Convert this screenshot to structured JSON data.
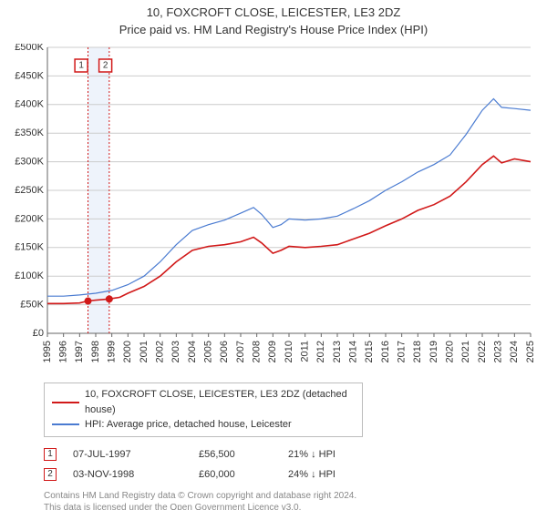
{
  "title_line1": "10, FOXCROFT CLOSE, LEICESTER, LE3 2DZ",
  "title_line2": "Price paid vs. HM Land Registry's House Price Index (HPI)",
  "chart": {
    "type": "line",
    "background_color": "#ffffff",
    "grid_color": "#cccccc",
    "axis_color": "#666666",
    "band_color": "#eef3fb",
    "x_start": 1995,
    "x_end": 2025,
    "xticks": [
      1995,
      1996,
      1997,
      1998,
      1999,
      2000,
      2001,
      2002,
      2003,
      2004,
      2005,
      2006,
      2007,
      2008,
      2009,
      2010,
      2011,
      2012,
      2013,
      2014,
      2015,
      2016,
      2017,
      2018,
      2019,
      2020,
      2021,
      2022,
      2023,
      2024,
      2025
    ],
    "y_start": 0,
    "y_end": 500000,
    "yticks": [
      0,
      50000,
      100000,
      150000,
      200000,
      250000,
      300000,
      350000,
      400000,
      450000,
      500000
    ],
    "ytick_labels": [
      "£0",
      "£50K",
      "£100K",
      "£150K",
      "£200K",
      "£250K",
      "£300K",
      "£350K",
      "£400K",
      "£450K",
      "£500K"
    ],
    "series_price": {
      "label": "10, FOXCROFT CLOSE, LEICESTER, LE3 2DZ (detached house)",
      "color": "#d11919",
      "width": 1.6,
      "points": [
        [
          1995.0,
          52000
        ],
        [
          1996.0,
          52000
        ],
        [
          1997.0,
          53000
        ],
        [
          1997.5,
          56500
        ],
        [
          1998.0,
          58000
        ],
        [
          1998.84,
          60000
        ],
        [
          1999.5,
          63000
        ],
        [
          2000.0,
          70000
        ],
        [
          2001.0,
          82000
        ],
        [
          2002.0,
          100000
        ],
        [
          2003.0,
          125000
        ],
        [
          2004.0,
          145000
        ],
        [
          2005.0,
          152000
        ],
        [
          2006.0,
          155000
        ],
        [
          2007.0,
          160000
        ],
        [
          2007.8,
          168000
        ],
        [
          2008.3,
          158000
        ],
        [
          2009.0,
          140000
        ],
        [
          2009.5,
          145000
        ],
        [
          2010.0,
          152000
        ],
        [
          2011.0,
          150000
        ],
        [
          2012.0,
          152000
        ],
        [
          2013.0,
          155000
        ],
        [
          2014.0,
          165000
        ],
        [
          2015.0,
          175000
        ],
        [
          2016.0,
          188000
        ],
        [
          2017.0,
          200000
        ],
        [
          2018.0,
          215000
        ],
        [
          2019.0,
          225000
        ],
        [
          2020.0,
          240000
        ],
        [
          2021.0,
          265000
        ],
        [
          2022.0,
          295000
        ],
        [
          2022.7,
          310000
        ],
        [
          2023.2,
          298000
        ],
        [
          2024.0,
          305000
        ],
        [
          2025.0,
          300000
        ]
      ]
    },
    "series_hpi": {
      "label": "HPI: Average price, detached house, Leicester",
      "color": "#4a7bd1",
      "width": 1.2,
      "points": [
        [
          1995.0,
          65000
        ],
        [
          1996.0,
          65000
        ],
        [
          1997.0,
          67000
        ],
        [
          1998.0,
          70000
        ],
        [
          1999.0,
          75000
        ],
        [
          2000.0,
          85000
        ],
        [
          2001.0,
          100000
        ],
        [
          2002.0,
          125000
        ],
        [
          2003.0,
          155000
        ],
        [
          2004.0,
          180000
        ],
        [
          2005.0,
          190000
        ],
        [
          2006.0,
          198000
        ],
        [
          2007.0,
          210000
        ],
        [
          2007.8,
          220000
        ],
        [
          2008.3,
          208000
        ],
        [
          2009.0,
          185000
        ],
        [
          2009.5,
          190000
        ],
        [
          2010.0,
          200000
        ],
        [
          2011.0,
          198000
        ],
        [
          2012.0,
          200000
        ],
        [
          2013.0,
          205000
        ],
        [
          2014.0,
          218000
        ],
        [
          2015.0,
          232000
        ],
        [
          2016.0,
          250000
        ],
        [
          2017.0,
          265000
        ],
        [
          2018.0,
          282000
        ],
        [
          2019.0,
          295000
        ],
        [
          2020.0,
          312000
        ],
        [
          2021.0,
          348000
        ],
        [
          2022.0,
          390000
        ],
        [
          2022.7,
          410000
        ],
        [
          2023.2,
          395000
        ],
        [
          2024.0,
          393000
        ],
        [
          2025.0,
          390000
        ]
      ]
    },
    "band": {
      "start": 1997.52,
      "end": 1998.84
    },
    "sale_markers": [
      {
        "n": "1",
        "x": 1997.52,
        "y": 56500,
        "label_x": 1997.1
      },
      {
        "n": "2",
        "x": 1998.84,
        "y": 60000,
        "label_x": 1998.6
      }
    ]
  },
  "legend": {
    "border_color": "#bcbcbc"
  },
  "sales": [
    {
      "n": "1",
      "date": "07-JUL-1997",
      "price": "£56,500",
      "delta": "21% ↓ HPI"
    },
    {
      "n": "2",
      "date": "03-NOV-1998",
      "price": "£60,000",
      "delta": "24% ↓ HPI"
    }
  ],
  "attribution_line1": "Contains HM Land Registry data © Crown copyright and database right 2024.",
  "attribution_line2": "This data is licensed under the Open Government Licence v3.0."
}
